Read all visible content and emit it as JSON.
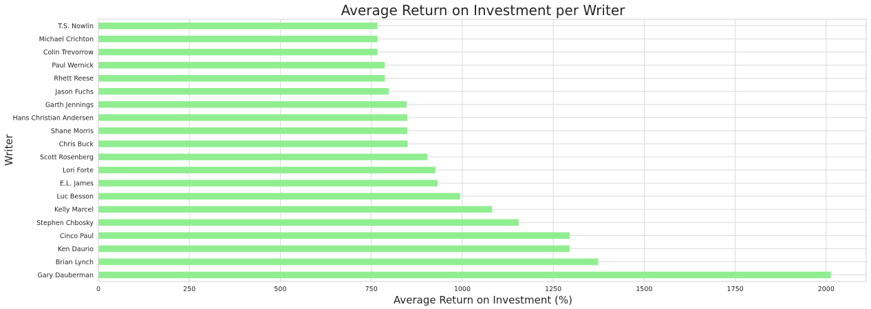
{
  "chart_data": {
    "type": "bar",
    "orientation": "horizontal",
    "title": "Average Return on Investment per Writer",
    "xlabel": "Average Return on Investment (%)",
    "ylabel": "Writer",
    "xlim": [
      0,
      2110
    ],
    "xticks": [
      0,
      250,
      500,
      750,
      1000,
      1250,
      1500,
      1750,
      2000
    ],
    "grid": true,
    "bar_color": "#90EE90",
    "categories": [
      "Gary Dauberman",
      "Brian Lynch",
      "Ken Daurio",
      "Cinco Paul",
      "Stephen Chbosky",
      "Kelly Marcel",
      "Luc Besson",
      "E.L. James",
      "Lori Forte",
      "Scott Rosenberg",
      "Chris Buck",
      "Shane Morris",
      "Hans Christian Andersen",
      "Garth Jennings",
      "Jason Fuchs",
      "Rhett Reese",
      "Paul Wernick",
      "Colin Trevorrow",
      "Michael Crichton",
      "T.S. Nowlin"
    ],
    "values": [
      2013,
      1374,
      1295,
      1295,
      1155,
      1082,
      994,
      932,
      926,
      904,
      850,
      849,
      849,
      847,
      798,
      787,
      787,
      767,
      767,
      767
    ]
  }
}
